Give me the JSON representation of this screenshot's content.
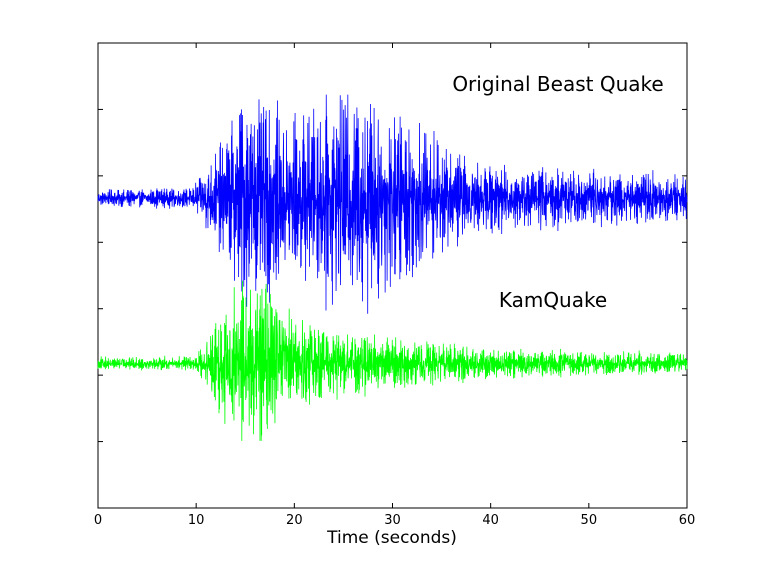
{
  "chart_data": {
    "type": "line",
    "title": "",
    "xlabel": "Time (seconds)",
    "ylabel": "",
    "xlim": [
      0,
      60
    ],
    "x_ticks": [
      "0",
      "10",
      "20",
      "30",
      "40",
      "50",
      "60"
    ],
    "grid": false,
    "y_tick_count": 7,
    "series": [
      {
        "name": "Original Beast Quake",
        "color": "#0000ff",
        "baseline": 0,
        "envelope": [
          [
            0,
            0.08
          ],
          [
            9.5,
            0.1
          ],
          [
            11,
            0.3
          ],
          [
            13,
            0.6
          ],
          [
            14.5,
            1.0
          ],
          [
            16,
            1.0
          ],
          [
            18,
            0.9
          ],
          [
            20,
            0.85
          ],
          [
            22,
            0.9
          ],
          [
            24,
            1.05
          ],
          [
            27,
            1.05
          ],
          [
            30,
            0.9
          ],
          [
            33,
            0.7
          ],
          [
            35,
            0.55
          ],
          [
            38,
            0.35
          ],
          [
            42,
            0.3
          ],
          [
            48,
            0.3
          ],
          [
            55,
            0.25
          ],
          [
            60,
            0.22
          ]
        ],
        "peak_max": 1.0,
        "peak_min": -1.15
      },
      {
        "name": "KamQuake",
        "color": "#00ff00",
        "baseline": -1.6,
        "envelope": [
          [
            0,
            0.06
          ],
          [
            10,
            0.07
          ],
          [
            11,
            0.25
          ],
          [
            12,
            0.45
          ],
          [
            14,
            0.7
          ],
          [
            15.5,
            0.75
          ],
          [
            17.5,
            0.8
          ],
          [
            19,
            0.55
          ],
          [
            22,
            0.4
          ],
          [
            25,
            0.32
          ],
          [
            30,
            0.25
          ],
          [
            35,
            0.2
          ],
          [
            40,
            0.14
          ],
          [
            50,
            0.12
          ],
          [
            60,
            0.1
          ]
        ],
        "peak_max": -0.8,
        "peak_min": -2.35
      }
    ]
  }
}
